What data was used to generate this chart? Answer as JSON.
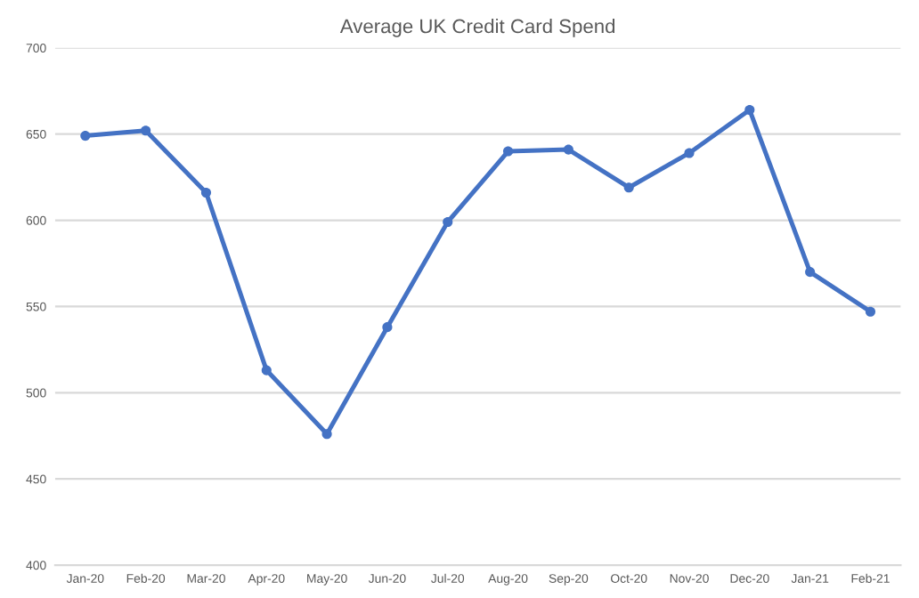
{
  "chart_data": {
    "type": "line",
    "title": "Average UK Credit Card Spend",
    "categories": [
      "Jan-20",
      "Feb-20",
      "Mar-20",
      "Apr-20",
      "May-20",
      "Jun-20",
      "Jul-20",
      "Aug-20",
      "Sep-20",
      "Oct-20",
      "Nov-20",
      "Dec-20",
      "Jan-21",
      "Feb-21"
    ],
    "series": [
      {
        "color": "#4472c4",
        "values": [
          649,
          652,
          616,
          513,
          476,
          538,
          599,
          640,
          641,
          619,
          639,
          664,
          570,
          547
        ]
      }
    ],
    "ylim": [
      400,
      700
    ],
    "yticks": [
      400,
      450,
      500,
      550,
      600,
      650,
      700
    ],
    "grid": "y",
    "marker": "circle",
    "line_style": "solid"
  }
}
